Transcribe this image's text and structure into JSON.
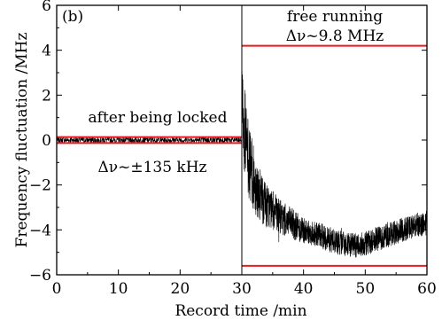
{
  "chart_data": {
    "type": "line",
    "panel_label": "(b)",
    "xlabel": "Record time /min",
    "ylabel": "Frequency fluctuation /MHz",
    "xlim": [
      0,
      60
    ],
    "ylim": [
      -6,
      6
    ],
    "xticks": [
      0,
      10,
      20,
      30,
      40,
      50,
      60
    ],
    "yticks": [
      -6,
      -4,
      -2,
      0,
      2,
      4,
      6
    ],
    "divider_x": 30,
    "grid": false,
    "colors": {
      "trace": "#000000",
      "bounds": "#e8191f"
    },
    "series": [
      {
        "segment": "locked",
        "x_range": [
          0,
          30
        ],
        "mean": 0.0,
        "deviation": 0.135,
        "upper_bound": 0.135,
        "lower_bound": -0.135
      },
      {
        "segment": "free",
        "x": [
          30,
          31,
          32,
          33,
          34,
          35,
          36,
          38,
          40,
          42,
          44,
          46,
          48,
          50,
          52,
          54,
          56,
          58,
          60
        ],
        "mean": [
          1.5,
          -0.8,
          -1.8,
          -2.5,
          -2.9,
          -3.1,
          -3.4,
          -3.7,
          -4.0,
          -4.2,
          -4.4,
          -4.6,
          -4.7,
          -4.6,
          -4.4,
          -4.2,
          -4.0,
          -3.8,
          -3.7
        ],
        "upper_bound": 4.2,
        "lower_bound": -5.6
      }
    ],
    "annotations": {
      "locked_title": "after being locked",
      "locked_width": "Δν~±135 kHz",
      "free_title": "free running",
      "free_width": "Δν~9.8 MHz"
    }
  }
}
